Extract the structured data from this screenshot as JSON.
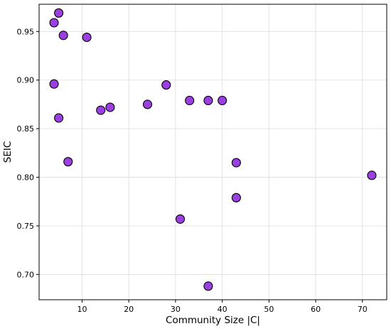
{
  "chart_data": {
    "type": "scatter",
    "title": "",
    "xlabel": "Community Size |C|",
    "ylabel": "SEIC",
    "xlim": [
      0.8,
      75.2
    ],
    "ylim": [
      0.674,
      0.978
    ],
    "xticks": [
      10,
      20,
      30,
      40,
      50,
      60,
      70
    ],
    "yticks": [
      0.7,
      0.75,
      0.8,
      0.85,
      0.9,
      0.95
    ],
    "xtick_labels": [
      "10",
      "20",
      "30",
      "40",
      "50",
      "60",
      "70"
    ],
    "ytick_labels": [
      "0.70",
      "0.75",
      "0.80",
      "0.85",
      "0.90",
      "0.95"
    ],
    "grid": true,
    "marker_color": "#9b3fe0",
    "marker_edge_color": "#000000",
    "series": [
      {
        "points": [
          {
            "x": 5,
            "y": 0.969
          },
          {
            "x": 4,
            "y": 0.959
          },
          {
            "x": 6,
            "y": 0.946
          },
          {
            "x": 11,
            "y": 0.944
          },
          {
            "x": 4,
            "y": 0.896
          },
          {
            "x": 28,
            "y": 0.895
          },
          {
            "x": 33,
            "y": 0.879
          },
          {
            "x": 37,
            "y": 0.879
          },
          {
            "x": 40,
            "y": 0.879
          },
          {
            "x": 24,
            "y": 0.875
          },
          {
            "x": 16,
            "y": 0.872
          },
          {
            "x": 14,
            "y": 0.869
          },
          {
            "x": 5,
            "y": 0.861
          },
          {
            "x": 7,
            "y": 0.816
          },
          {
            "x": 43,
            "y": 0.815
          },
          {
            "x": 72,
            "y": 0.802
          },
          {
            "x": 43,
            "y": 0.779
          },
          {
            "x": 31,
            "y": 0.757
          },
          {
            "x": 37,
            "y": 0.688
          }
        ]
      }
    ]
  }
}
